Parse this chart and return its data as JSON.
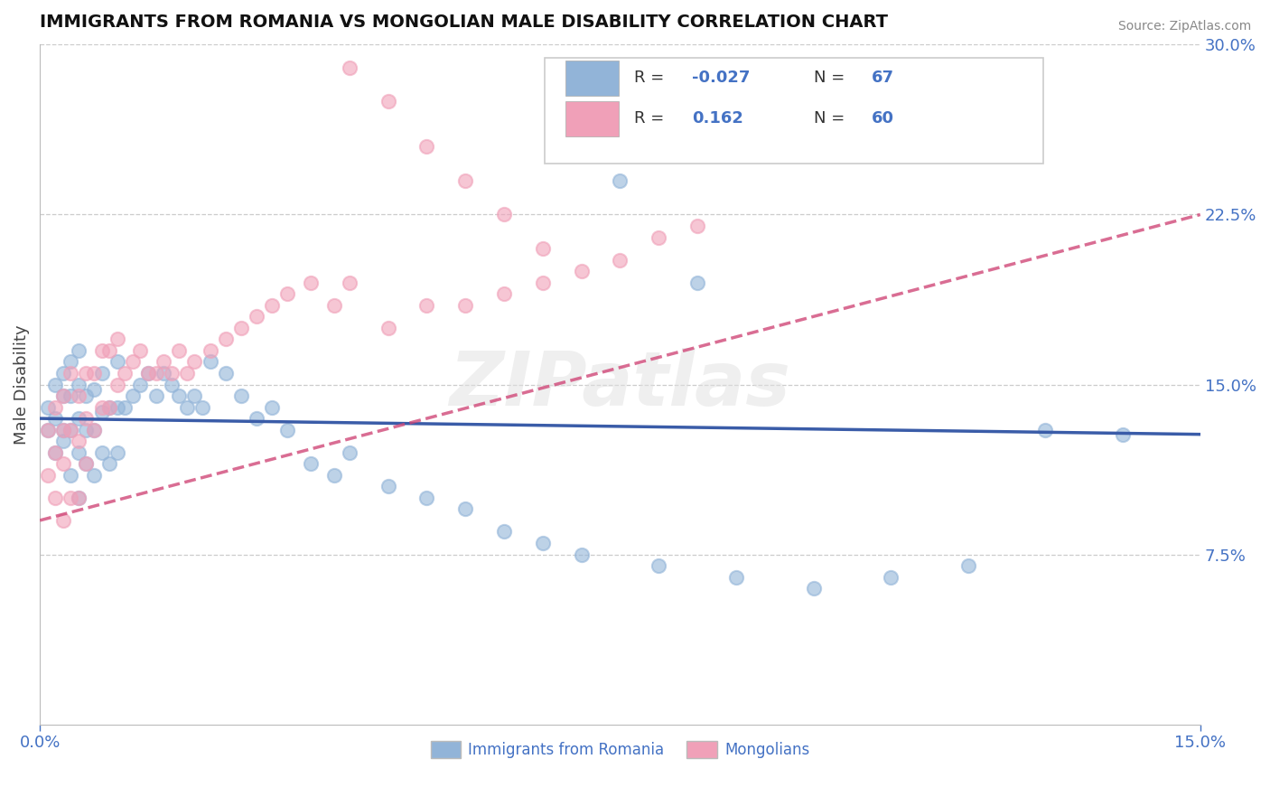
{
  "title": "IMMIGRANTS FROM ROMANIA VS MONGOLIAN MALE DISABILITY CORRELATION CHART",
  "source": "Source: ZipAtlas.com",
  "ylabel": "Male Disability",
  "xlim": [
    0.0,
    0.15
  ],
  "ylim": [
    0.0,
    0.3
  ],
  "right_yticks": [
    0.075,
    0.15,
    0.225,
    0.3
  ],
  "right_yticklabels": [
    "7.5%",
    "15.0%",
    "22.5%",
    "30.0%"
  ],
  "blue_color": "#92b4d8",
  "pink_color": "#f0a0b8",
  "blue_line_color": "#3a5ca8",
  "pink_line_color": "#d04878",
  "legend_label_blue": "Immigrants from Romania",
  "legend_label_pink": "Mongolians",
  "watermark": "ZIPatlas",
  "blue_x": [
    0.001,
    0.001,
    0.002,
    0.002,
    0.002,
    0.003,
    0.003,
    0.003,
    0.003,
    0.004,
    0.004,
    0.004,
    0.004,
    0.005,
    0.005,
    0.005,
    0.005,
    0.005,
    0.006,
    0.006,
    0.006,
    0.007,
    0.007,
    0.007,
    0.008,
    0.008,
    0.008,
    0.009,
    0.009,
    0.01,
    0.01,
    0.01,
    0.011,
    0.012,
    0.013,
    0.014,
    0.015,
    0.016,
    0.017,
    0.018,
    0.019,
    0.02,
    0.021,
    0.022,
    0.024,
    0.026,
    0.028,
    0.03,
    0.032,
    0.035,
    0.038,
    0.04,
    0.045,
    0.05,
    0.055,
    0.06,
    0.065,
    0.07,
    0.08,
    0.09,
    0.1,
    0.11,
    0.12,
    0.13,
    0.14,
    0.085,
    0.075
  ],
  "blue_y": [
    0.13,
    0.14,
    0.12,
    0.135,
    0.15,
    0.125,
    0.13,
    0.145,
    0.155,
    0.11,
    0.13,
    0.145,
    0.16,
    0.1,
    0.12,
    0.135,
    0.15,
    0.165,
    0.115,
    0.13,
    0.145,
    0.11,
    0.13,
    0.148,
    0.12,
    0.138,
    0.155,
    0.115,
    0.14,
    0.12,
    0.14,
    0.16,
    0.14,
    0.145,
    0.15,
    0.155,
    0.145,
    0.155,
    0.15,
    0.145,
    0.14,
    0.145,
    0.14,
    0.16,
    0.155,
    0.145,
    0.135,
    0.14,
    0.13,
    0.115,
    0.11,
    0.12,
    0.105,
    0.1,
    0.095,
    0.085,
    0.08,
    0.075,
    0.07,
    0.065,
    0.06,
    0.065,
    0.07,
    0.13,
    0.128,
    0.195,
    0.24
  ],
  "pink_x": [
    0.001,
    0.001,
    0.002,
    0.002,
    0.002,
    0.003,
    0.003,
    0.003,
    0.003,
    0.004,
    0.004,
    0.004,
    0.005,
    0.005,
    0.005,
    0.006,
    0.006,
    0.006,
    0.007,
    0.007,
    0.008,
    0.008,
    0.009,
    0.009,
    0.01,
    0.01,
    0.011,
    0.012,
    0.013,
    0.014,
    0.015,
    0.016,
    0.017,
    0.018,
    0.019,
    0.02,
    0.022,
    0.024,
    0.026,
    0.028,
    0.03,
    0.032,
    0.035,
    0.038,
    0.04,
    0.045,
    0.05,
    0.055,
    0.06,
    0.065,
    0.07,
    0.075,
    0.08,
    0.085,
    0.04,
    0.045,
    0.05,
    0.055,
    0.06,
    0.065
  ],
  "pink_y": [
    0.11,
    0.13,
    0.1,
    0.12,
    0.14,
    0.09,
    0.115,
    0.13,
    0.145,
    0.1,
    0.13,
    0.155,
    0.1,
    0.125,
    0.145,
    0.115,
    0.135,
    0.155,
    0.13,
    0.155,
    0.14,
    0.165,
    0.14,
    0.165,
    0.15,
    0.17,
    0.155,
    0.16,
    0.165,
    0.155,
    0.155,
    0.16,
    0.155,
    0.165,
    0.155,
    0.16,
    0.165,
    0.17,
    0.175,
    0.18,
    0.185,
    0.19,
    0.195,
    0.185,
    0.195,
    0.175,
    0.185,
    0.185,
    0.19,
    0.195,
    0.2,
    0.205,
    0.215,
    0.22,
    0.29,
    0.275,
    0.255,
    0.24,
    0.225,
    0.21
  ]
}
